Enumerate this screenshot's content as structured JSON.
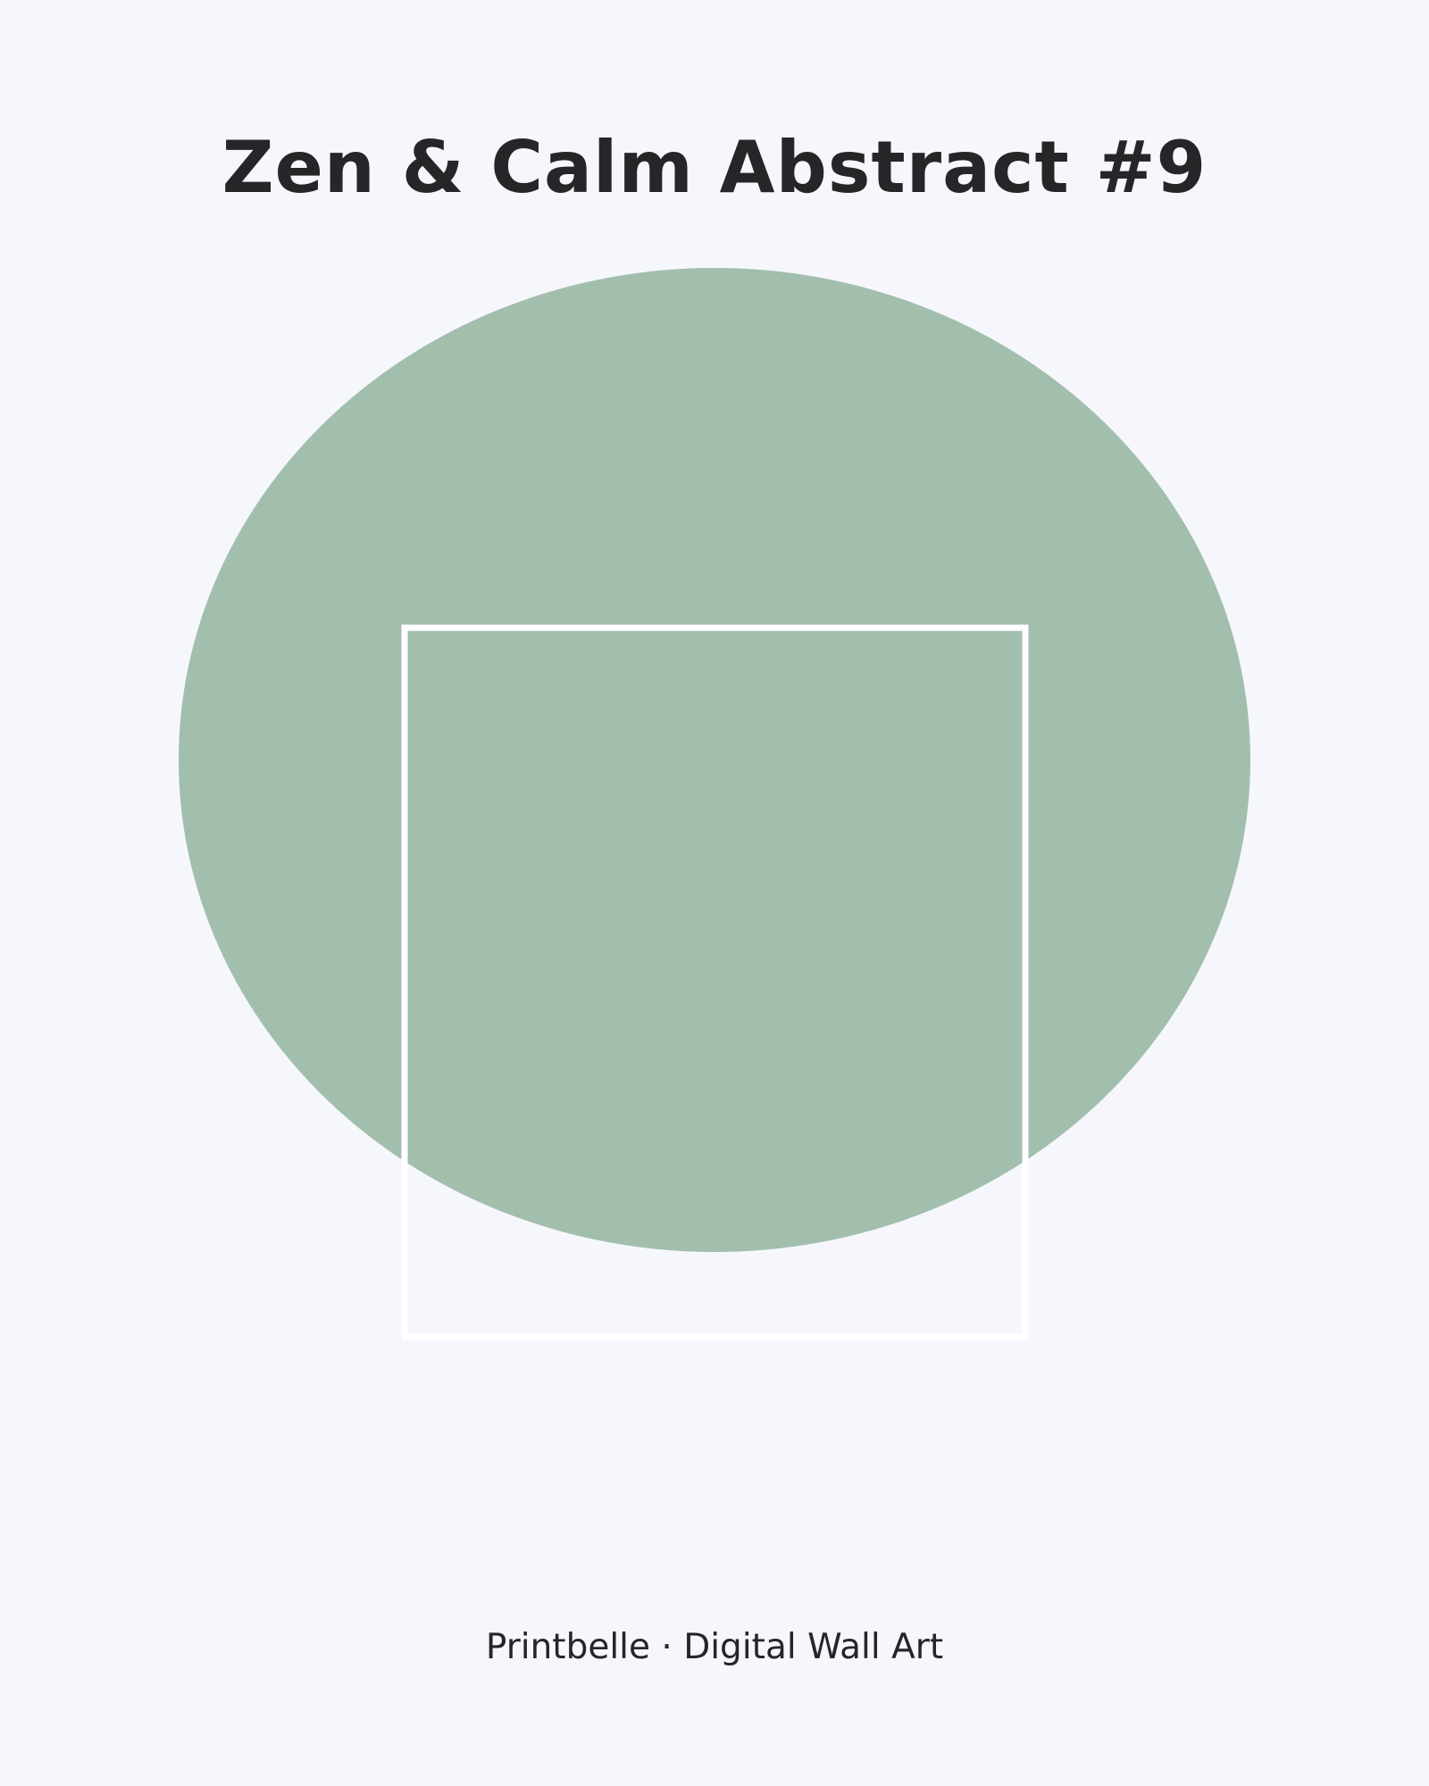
{
  "poster": {
    "title": "Zen & Calm Abstract #9",
    "footer": "Printbelle · Digital Wall Art"
  },
  "colors": {
    "background": "#f6f7fc",
    "text": "#252627",
    "circle": "#a2bfad",
    "frame_stroke": "#ffffff"
  }
}
